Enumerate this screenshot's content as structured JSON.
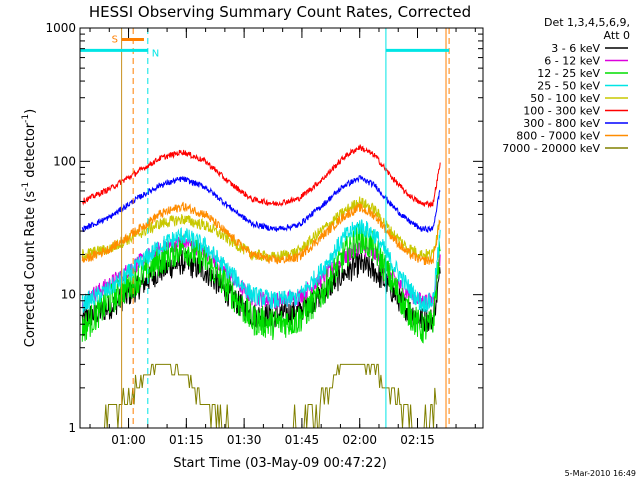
{
  "chart_data": {
    "type": "line",
    "title": "HESSI Observing Summary Count Rates, Corrected",
    "xlabel": "Start Time (03-May-09 00:47:22)",
    "ylabel_pre": "Corrected Count Rate (s",
    "ylabel_sup1": "-1",
    "ylabel_mid": " detector",
    "ylabel_sup2": "-1",
    "ylabel_post": ")",
    "yscale": "log",
    "ylim": [
      1,
      1000
    ],
    "xlim_min": [
      47.4,
      152.0
    ],
    "y_ticks": [
      {
        "value": 1,
        "label": "1"
      },
      {
        "value": 10,
        "label": "10"
      },
      {
        "value": 100,
        "label": "100"
      },
      {
        "value": 1000,
        "label": "1000"
      }
    ],
    "x_ticks": [
      {
        "value": 60,
        "label": "01:00"
      },
      {
        "value": 75,
        "label": "01:15"
      },
      {
        "value": 90,
        "label": "01:30"
      },
      {
        "value": 105,
        "label": "01:45"
      },
      {
        "value": 120,
        "label": "02:00"
      },
      {
        "value": 135,
        "label": "02:15"
      }
    ],
    "legend_header": [
      "Det 1,3,4,5,6,9,",
      "Att 0"
    ],
    "legend_placement": "right",
    "series": [
      {
        "name": "3 - 6 keV",
        "color": "#000000",
        "x": [
          48,
          55,
          62,
          68,
          74,
          80,
          86,
          92,
          98,
          104,
          110,
          116,
          120,
          124,
          128,
          132,
          136,
          139,
          141
        ],
        "y": [
          6.5,
          8.0,
          11,
          15,
          17.5,
          15,
          10,
          7.0,
          7.0,
          7.5,
          10,
          14.5,
          17,
          15,
          11,
          8.0,
          6.5,
          6.5,
          15
        ]
      },
      {
        "name": "6 - 12 keV",
        "color": "#dd00dd",
        "x": [
          48,
          55,
          62,
          68,
          74,
          80,
          86,
          92,
          98,
          104,
          110,
          116,
          120,
          124,
          128,
          132,
          136,
          139,
          141
        ],
        "y": [
          9.0,
          12,
          17,
          22,
          25,
          21,
          14,
          9.5,
          9.0,
          9.5,
          13,
          19,
          23,
          20,
          14,
          10.5,
          9.0,
          9.0,
          20
        ]
      },
      {
        "name": "12 - 25 keV",
        "color": "#00dd00",
        "x": [
          48,
          55,
          62,
          68,
          74,
          80,
          86,
          92,
          98,
          104,
          110,
          116,
          120,
          124,
          128,
          132,
          136,
          139,
          141
        ],
        "y": [
          5.5,
          9.0,
          13,
          18,
          23,
          18,
          11,
          6.5,
          6.0,
          6.5,
          10,
          20,
          27,
          22,
          13,
          8.0,
          5.5,
          6.0,
          25
        ]
      },
      {
        "name": "25 - 50 keV",
        "color": "#00e5e5",
        "x": [
          48,
          55,
          62,
          68,
          74,
          80,
          86,
          92,
          98,
          104,
          110,
          116,
          120,
          124,
          128,
          132,
          136,
          139,
          141
        ],
        "y": [
          8.5,
          11,
          16,
          23,
          28,
          23,
          15,
          10,
          9.0,
          9.5,
          15,
          27,
          33,
          28,
          18,
          12,
          8.5,
          9.0,
          30
        ]
      },
      {
        "name": "50 - 100 keV",
        "color": "#c8c800",
        "x": [
          48,
          55,
          62,
          68,
          74,
          80,
          86,
          92,
          98,
          104,
          110,
          116,
          120,
          124,
          128,
          132,
          136,
          139,
          141
        ],
        "y": [
          20,
          22,
          28,
          34,
          37,
          33,
          26,
          20,
          19,
          21,
          30,
          42,
          50,
          43,
          30,
          23,
          20,
          20,
          40
        ]
      },
      {
        "name": "100 - 300 keV",
        "color": "#ff0000",
        "x": [
          48,
          55,
          62,
          68,
          74,
          80,
          86,
          92,
          98,
          104,
          110,
          116,
          120,
          124,
          128,
          132,
          136,
          139,
          141
        ],
        "y": [
          50,
          62,
          82,
          105,
          118,
          100,
          70,
          52,
          48,
          52,
          72,
          108,
          128,
          110,
          78,
          58,
          48,
          48,
          100
        ]
      },
      {
        "name": "300 - 800 keV",
        "color": "#0000ff",
        "x": [
          48,
          55,
          62,
          68,
          74,
          80,
          86,
          92,
          98,
          104,
          110,
          116,
          120,
          124,
          128,
          132,
          136,
          139,
          141
        ],
        "y": [
          31,
          38,
          52,
          66,
          74,
          64,
          46,
          34,
          31,
          33,
          46,
          66,
          75,
          66,
          48,
          37,
          31,
          31,
          65
        ]
      },
      {
        "name": "800 - 7000 keV",
        "color": "#ff8c00",
        "x": [
          48,
          55,
          62,
          68,
          74,
          80,
          86,
          92,
          98,
          104,
          110,
          116,
          120,
          124,
          128,
          132,
          136,
          139,
          141
        ],
        "y": [
          18,
          22,
          30,
          40,
          46,
          40,
          28,
          20,
          18,
          19,
          27,
          39,
          45,
          39,
          28,
          21,
          18,
          18,
          38
        ]
      },
      {
        "name": "7000 - 20000 keV",
        "color": "#808000",
        "x": [
          52,
          58,
          62,
          66,
          68,
          72,
          76,
          80,
          84,
          88,
          90,
          100,
          108,
          112,
          116,
          120,
          124,
          128,
          132,
          136,
          140
        ],
        "y": [
          1,
          1.5,
          2.0,
          2.8,
          3.2,
          3.0,
          2.2,
          1.6,
          1.2,
          1,
          1,
          1,
          1.2,
          2.0,
          3.0,
          3.2,
          2.8,
          2.0,
          1.3,
          1,
          1.5
        ]
      }
    ],
    "vertical_lines": [
      {
        "x": 47.4,
        "style": "solid",
        "color": "#00e5e5"
      },
      {
        "x": 58.2,
        "style": "solid",
        "color": "#c8901e"
      },
      {
        "x": 61.2,
        "style": "dashed",
        "color": "#ff7f00"
      },
      {
        "x": 65.0,
        "style": "dashed",
        "color": "#00e5e5"
      },
      {
        "x": 126.8,
        "style": "solid",
        "color": "#00e5e5"
      },
      {
        "x": 142.4,
        "style": "solid",
        "color": "#ff7f00"
      },
      {
        "x": 143.2,
        "style": "dashed",
        "color": "#ff7f00"
      }
    ],
    "bar_annotations": [
      {
        "label": "S",
        "x1": 58.2,
        "x2": 64.0,
        "y": 820,
        "color": "#ff7f00"
      },
      {
        "label": "N",
        "x1": 47.4,
        "x2": 65.0,
        "y": 680,
        "color": "#00e5e5"
      },
      {
        "label": "",
        "x1": 126.8,
        "x2": 143.2,
        "y": 680,
        "color": "#00e5e5"
      }
    ],
    "footer": "5-Mar-2010 16:49"
  }
}
